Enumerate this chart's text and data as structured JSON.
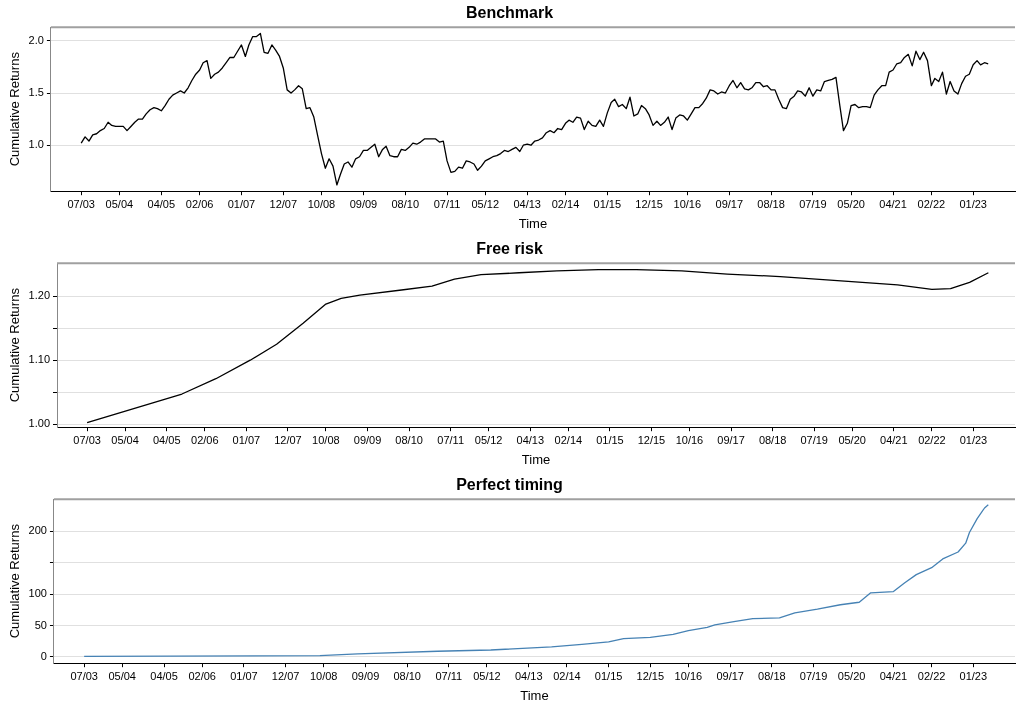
{
  "chart_data": [
    {
      "type": "line",
      "title": "Benchmark",
      "xlabel": "Time",
      "ylabel": "Cumulative Returns",
      "grid": "y",
      "marker": "none",
      "line_style": "solid",
      "xlim": [
        "2002-11",
        "2023-12"
      ],
      "xticks": [
        {
          "value": "2003-07",
          "label": "07/03"
        },
        {
          "value": "2004-05",
          "label": "05/04"
        },
        {
          "value": "2005-04",
          "label": "04/05"
        },
        {
          "value": "2006-02",
          "label": "02/06"
        },
        {
          "value": "2007-01",
          "label": "01/07"
        },
        {
          "value": "2007-12",
          "label": "12/07"
        },
        {
          "value": "2008-10",
          "label": "10/08"
        },
        {
          "value": "2009-09",
          "label": "09/09"
        },
        {
          "value": "2010-08",
          "label": "08/10"
        },
        {
          "value": "2011-07",
          "label": "07/11"
        },
        {
          "value": "2012-05",
          "label": "05/12"
        },
        {
          "value": "2013-04",
          "label": "04/13"
        },
        {
          "value": "2014-02",
          "label": "02/14"
        },
        {
          "value": "2015-01",
          "label": "01/15"
        },
        {
          "value": "2015-12",
          "label": "12/15"
        },
        {
          "value": "2016-10",
          "label": "10/16"
        },
        {
          "value": "2017-09",
          "label": "09/17"
        },
        {
          "value": "2018-08",
          "label": "08/18"
        },
        {
          "value": "2019-07",
          "label": "07/19"
        },
        {
          "value": "2020-05",
          "label": "05/20"
        },
        {
          "value": "2021-04",
          "label": "04/21"
        },
        {
          "value": "2022-02",
          "label": "02/22"
        },
        {
          "value": "2023-01",
          "label": "01/23"
        }
      ],
      "ylim": [
        0.56,
        2.13
      ],
      "yticks": [
        {
          "value": 1,
          "label": "1.0"
        },
        {
          "value": 1.5,
          "label": "1.5"
        },
        {
          "value": 2,
          "label": "2.0"
        }
      ],
      "series": [
        {
          "color": "#000000",
          "x": [
            "2003-07",
            "2003-08",
            "2003-09",
            "2003-10",
            "2003-11",
            "2003-12",
            "2004-01",
            "2004-02",
            "2004-03",
            "2004-04",
            "2004-05",
            "2004-06",
            "2004-07",
            "2004-08",
            "2004-09",
            "2004-10",
            "2004-11",
            "2004-12",
            "2005-01",
            "2005-02",
            "2005-03",
            "2005-04",
            "2005-05",
            "2005-06",
            "2005-07",
            "2005-08",
            "2005-09",
            "2005-10",
            "2005-11",
            "2005-12",
            "2006-01",
            "2006-02",
            "2006-03",
            "2006-04",
            "2006-05",
            "2006-06",
            "2006-07",
            "2006-08",
            "2006-09",
            "2006-10",
            "2006-11",
            "2006-12",
            "2007-01",
            "2007-02",
            "2007-03",
            "2007-04",
            "2007-05",
            "2007-06",
            "2007-07",
            "2007-08",
            "2007-09",
            "2007-10",
            "2007-11",
            "2007-12",
            "2008-01",
            "2008-02",
            "2008-03",
            "2008-04",
            "2008-05",
            "2008-06",
            "2008-07",
            "2008-08",
            "2008-09",
            "2008-10",
            "2008-11",
            "2008-12",
            "2009-01",
            "2009-02",
            "2009-03",
            "2009-04",
            "2009-05",
            "2009-06",
            "2009-07",
            "2009-08",
            "2009-09",
            "2009-10",
            "2009-11",
            "2009-12",
            "2010-01",
            "2010-02",
            "2010-03",
            "2010-04",
            "2010-05",
            "2010-06",
            "2010-07",
            "2010-08",
            "2010-09",
            "2010-10",
            "2010-11",
            "2010-12",
            "2011-01",
            "2011-02",
            "2011-03",
            "2011-04",
            "2011-05",
            "2011-06",
            "2011-07",
            "2011-08",
            "2011-09",
            "2011-10",
            "2011-11",
            "2011-12",
            "2012-01",
            "2012-02",
            "2012-03",
            "2012-04",
            "2012-05",
            "2012-06",
            "2012-07",
            "2012-08",
            "2012-09",
            "2012-10",
            "2012-11",
            "2012-12",
            "2013-01",
            "2013-02",
            "2013-03",
            "2013-04",
            "2013-05",
            "2013-06",
            "2013-07",
            "2013-08",
            "2013-09",
            "2013-10",
            "2013-11",
            "2013-12",
            "2014-01",
            "2014-02",
            "2014-03",
            "2014-04",
            "2014-05",
            "2014-06",
            "2014-07",
            "2014-08",
            "2014-09",
            "2014-10",
            "2014-11",
            "2014-12",
            "2015-01",
            "2015-02",
            "2015-03",
            "2015-04",
            "2015-05",
            "2015-06",
            "2015-07",
            "2015-08",
            "2015-09",
            "2015-10",
            "2015-11",
            "2015-12",
            "2016-01",
            "2016-02",
            "2016-03",
            "2016-04",
            "2016-05",
            "2016-06",
            "2016-07",
            "2016-08",
            "2016-09",
            "2016-10",
            "2016-11",
            "2016-12",
            "2017-01",
            "2017-02",
            "2017-03",
            "2017-04",
            "2017-05",
            "2017-06",
            "2017-07",
            "2017-08",
            "2017-09",
            "2017-10",
            "2017-11",
            "2017-12",
            "2018-01",
            "2018-02",
            "2018-03",
            "2018-04",
            "2018-05",
            "2018-06",
            "2018-07",
            "2018-08",
            "2018-09",
            "2018-10",
            "2018-11",
            "2018-12",
            "2019-01",
            "2019-02",
            "2019-03",
            "2019-04",
            "2019-05",
            "2019-06",
            "2019-07",
            "2019-08",
            "2019-09",
            "2019-10",
            "2019-11",
            "2019-12",
            "2020-01",
            "2020-02",
            "2020-03",
            "2020-04",
            "2020-05",
            "2020-06",
            "2020-07",
            "2020-08",
            "2020-09",
            "2020-10",
            "2020-11",
            "2020-12",
            "2021-01",
            "2021-02",
            "2021-03",
            "2021-04",
            "2021-05",
            "2021-06",
            "2021-07",
            "2021-08",
            "2021-09",
            "2021-10",
            "2021-11",
            "2021-12",
            "2022-01",
            "2022-02",
            "2022-03",
            "2022-04",
            "2022-05",
            "2022-06",
            "2022-07",
            "2022-08",
            "2022-09",
            "2022-10",
            "2022-11",
            "2022-12",
            "2023-01",
            "2023-02",
            "2023-03",
            "2023-04",
            "2023-05"
          ],
          "values": [
            1.02,
            1.08,
            1.04,
            1.1,
            1.11,
            1.14,
            1.16,
            1.22,
            1.19,
            1.18,
            1.18,
            1.18,
            1.14,
            1.18,
            1.22,
            1.25,
            1.25,
            1.3,
            1.34,
            1.36,
            1.35,
            1.33,
            1.38,
            1.44,
            1.48,
            1.5,
            1.52,
            1.5,
            1.55,
            1.62,
            1.68,
            1.72,
            1.79,
            1.81,
            1.64,
            1.68,
            1.7,
            1.74,
            1.79,
            1.84,
            1.84,
            1.9,
            1.96,
            1.85,
            1.96,
            2.04,
            2.04,
            2.07,
            1.89,
            1.88,
            1.96,
            1.91,
            1.85,
            1.74,
            1.53,
            1.5,
            1.53,
            1.57,
            1.54,
            1.35,
            1.36,
            1.27,
            1.09,
            0.92,
            0.78,
            0.87,
            0.8,
            0.62,
            0.72,
            0.82,
            0.84,
            0.79,
            0.87,
            0.89,
            0.95,
            0.95,
            0.98,
            1.01,
            0.89,
            0.96,
            0.99,
            0.9,
            0.89,
            0.89,
            0.96,
            0.95,
            0.98,
            1.02,
            1.01,
            1.03,
            1.06,
            1.06,
            1.06,
            1.06,
            1.03,
            1.04,
            0.85,
            0.74,
            0.75,
            0.79,
            0.78,
            0.85,
            0.84,
            0.82,
            0.76,
            0.8,
            0.85,
            0.87,
            0.89,
            0.9,
            0.92,
            0.95,
            0.94,
            0.96,
            0.98,
            0.94,
            1.0,
            1.01,
            1.0,
            1.04,
            1.05,
            1.07,
            1.12,
            1.14,
            1.12,
            1.16,
            1.15,
            1.21,
            1.24,
            1.22,
            1.27,
            1.26,
            1.15,
            1.23,
            1.19,
            1.18,
            1.24,
            1.18,
            1.31,
            1.41,
            1.44,
            1.37,
            1.39,
            1.35,
            1.46,
            1.28,
            1.3,
            1.38,
            1.35,
            1.29,
            1.19,
            1.23,
            1.19,
            1.22,
            1.27,
            1.15,
            1.26,
            1.29,
            1.28,
            1.24,
            1.3,
            1.36,
            1.36,
            1.4,
            1.45,
            1.53,
            1.52,
            1.49,
            1.51,
            1.5,
            1.57,
            1.62,
            1.55,
            1.6,
            1.54,
            1.53,
            1.55,
            1.6,
            1.6,
            1.56,
            1.57,
            1.53,
            1.53,
            1.44,
            1.36,
            1.35,
            1.44,
            1.47,
            1.52,
            1.51,
            1.47,
            1.55,
            1.47,
            1.53,
            1.52,
            1.61,
            1.62,
            1.63,
            1.65,
            1.38,
            1.14,
            1.21,
            1.38,
            1.39,
            1.36,
            1.37,
            1.37,
            1.36,
            1.48,
            1.53,
            1.57,
            1.57,
            1.7,
            1.72,
            1.78,
            1.79,
            1.84,
            1.87,
            1.76,
            1.9,
            1.82,
            1.89,
            1.81,
            1.57,
            1.64,
            1.61,
            1.7,
            1.49,
            1.61,
            1.52,
            1.49,
            1.59,
            1.66,
            1.68,
            1.77,
            1.81,
            1.77,
            1.79,
            1.78
          ]
        }
      ]
    },
    {
      "type": "line",
      "title": "Free risk",
      "xlabel": "Time",
      "ylabel": "Cumulative Returns",
      "grid": "y",
      "marker": "none",
      "line_style": "solid",
      "xlim": [
        "2002-11",
        "2023-12"
      ],
      "xticks": [
        {
          "value": "2003-07",
          "label": "07/03"
        },
        {
          "value": "2004-05",
          "label": "05/04"
        },
        {
          "value": "2005-04",
          "label": "04/05"
        },
        {
          "value": "2006-02",
          "label": "02/06"
        },
        {
          "value": "2007-01",
          "label": "01/07"
        },
        {
          "value": "2007-12",
          "label": "12/07"
        },
        {
          "value": "2008-10",
          "label": "10/08"
        },
        {
          "value": "2009-09",
          "label": "09/09"
        },
        {
          "value": "2010-08",
          "label": "08/10"
        },
        {
          "value": "2011-07",
          "label": "07/11"
        },
        {
          "value": "2012-05",
          "label": "05/12"
        },
        {
          "value": "2013-04",
          "label": "04/13"
        },
        {
          "value": "2014-02",
          "label": "02/14"
        },
        {
          "value": "2015-01",
          "label": "01/15"
        },
        {
          "value": "2015-12",
          "label": "12/15"
        },
        {
          "value": "2016-10",
          "label": "10/16"
        },
        {
          "value": "2017-09",
          "label": "09/17"
        },
        {
          "value": "2018-08",
          "label": "08/18"
        },
        {
          "value": "2019-07",
          "label": "07/19"
        },
        {
          "value": "2020-05",
          "label": "05/20"
        },
        {
          "value": "2021-04",
          "label": "04/21"
        },
        {
          "value": "2022-02",
          "label": "02/22"
        },
        {
          "value": "2023-01",
          "label": "01/23"
        }
      ],
      "ylim": [
        0.995,
        1.252
      ],
      "yticks": [
        {
          "value": 1,
          "label": "1.00"
        },
        {
          "value": 1.05,
          "label": null
        },
        {
          "value": 1.1,
          "label": "1.10"
        },
        {
          "value": 1.15,
          "label": null
        },
        {
          "value": 1.2,
          "label": "1.20"
        }
      ],
      "series": [
        {
          "color": "#000000",
          "x": [
            "2003-07",
            "2005-08",
            "2006-05",
            "2007-02",
            "2007-09",
            "2008-04",
            "2008-10",
            "2009-02",
            "2009-07",
            "2010-06",
            "2011-02",
            "2011-08",
            "2012-03",
            "2013-01",
            "2013-11",
            "2014-10",
            "2015-08",
            "2016-08",
            "2017-08",
            "2018-10",
            "2020-03",
            "2021-05",
            "2022-02",
            "2022-07",
            "2022-12",
            "2023-05"
          ],
          "values": [
            1.002,
            1.047,
            1.071,
            1.1,
            1.125,
            1.158,
            1.188,
            1.197,
            1.202,
            1.21,
            1.216,
            1.227,
            1.234,
            1.237,
            1.24,
            1.242,
            1.242,
            1.24,
            1.235,
            1.231,
            1.224,
            1.218,
            1.211,
            1.212,
            1.222,
            1.237
          ]
        }
      ]
    },
    {
      "type": "line",
      "title": "Perfect timing",
      "xlabel": "Time",
      "ylabel": "Cumulative Returns",
      "grid": "y",
      "marker": "none",
      "line_style": "solid",
      "xlim": [
        "2002-11",
        "2023-12"
      ],
      "xticks": [
        {
          "value": "2003-07",
          "label": "07/03"
        },
        {
          "value": "2004-05",
          "label": "05/04"
        },
        {
          "value": "2005-04",
          "label": "04/05"
        },
        {
          "value": "2006-02",
          "label": "02/06"
        },
        {
          "value": "2007-01",
          "label": "01/07"
        },
        {
          "value": "2007-12",
          "label": "12/07"
        },
        {
          "value": "2008-10",
          "label": "10/08"
        },
        {
          "value": "2009-09",
          "label": "09/09"
        },
        {
          "value": "2010-08",
          "label": "08/10"
        },
        {
          "value": "2011-07",
          "label": "07/11"
        },
        {
          "value": "2012-05",
          "label": "05/12"
        },
        {
          "value": "2013-04",
          "label": "04/13"
        },
        {
          "value": "2014-02",
          "label": "02/14"
        },
        {
          "value": "2015-01",
          "label": "01/15"
        },
        {
          "value": "2015-12",
          "label": "12/15"
        },
        {
          "value": "2016-10",
          "label": "10/16"
        },
        {
          "value": "2017-09",
          "label": "09/17"
        },
        {
          "value": "2018-08",
          "label": "08/18"
        },
        {
          "value": "2019-07",
          "label": "07/19"
        },
        {
          "value": "2020-05",
          "label": "05/20"
        },
        {
          "value": "2021-04",
          "label": "04/21"
        },
        {
          "value": "2022-02",
          "label": "02/22"
        },
        {
          "value": "2023-01",
          "label": "01/23"
        }
      ],
      "ylim": [
        -10,
        251
      ],
      "yticks": [
        0,
        50,
        100,
        {
          "value": 150,
          "label": null
        },
        200
      ],
      "series": [
        {
          "color": "#4682b4",
          "x": [
            "2003-07",
            "2008-09",
            "2009-07",
            "2011-04",
            "2012-06",
            "2013-10",
            "2014-06",
            "2015-01",
            "2015-05",
            "2015-12",
            "2016-06",
            "2016-10",
            "2017-03",
            "2017-05",
            "2017-10",
            "2018-03",
            "2018-10",
            "2019-02",
            "2019-08",
            "2020-02",
            "2020-07",
            "2020-10",
            "2021-04",
            "2021-07",
            "2021-10",
            "2022-02",
            "2022-05",
            "2022-09",
            "2022-11",
            "2022-12",
            "2023-02",
            "2023-04",
            "2023-05"
          ],
          "values": [
            1,
            2,
            5,
            9,
            11,
            16,
            20,
            24,
            29,
            31,
            36,
            42,
            47,
            51,
            56,
            61,
            62,
            70,
            76,
            83,
            87,
            102,
            104,
            118,
            131,
            142,
            156,
            167,
            181,
            198,
            220,
            237,
            242
          ]
        }
      ]
    }
  ]
}
